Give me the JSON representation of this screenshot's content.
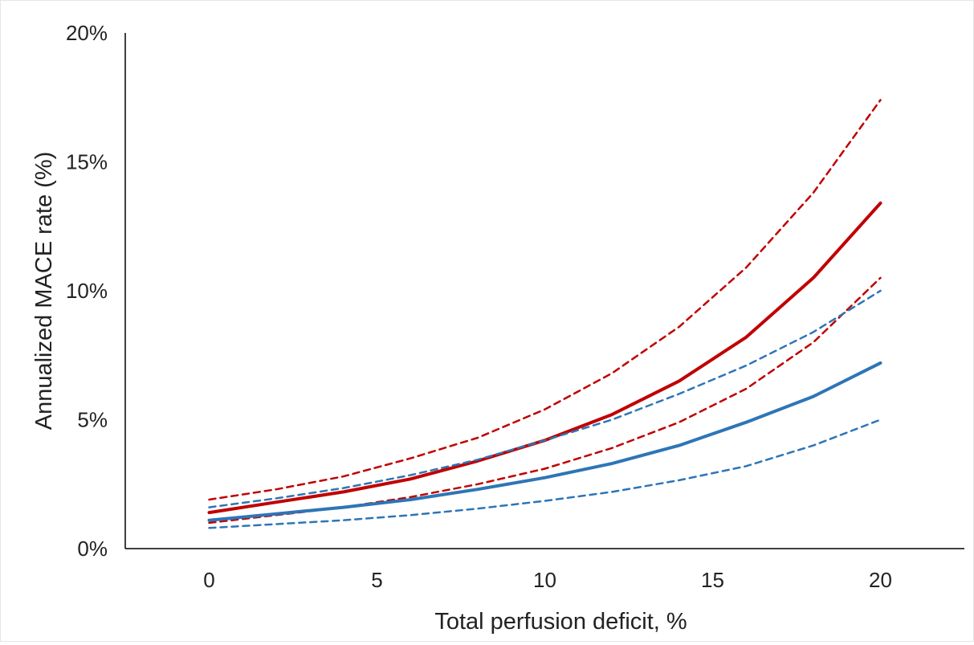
{
  "chart_data": {
    "type": "line",
    "title": "",
    "xlabel": "Total perfusion deficit, %",
    "ylabel": "Annualized MACE rate (%)",
    "xlim": [
      -2.5,
      22.5
    ],
    "ylim": [
      0,
      20
    ],
    "x_ticks": [
      0,
      5,
      10,
      15,
      20
    ],
    "x_tick_labels": [
      "0",
      "5",
      "10",
      "15",
      "20"
    ],
    "y_ticks": [
      0,
      5,
      10,
      15,
      20
    ],
    "y_tick_labels": [
      "0%",
      "5%",
      "10%",
      "15%",
      "20%"
    ],
    "grid": false,
    "legend": "none",
    "series": [
      {
        "color": "#c00000",
        "style": "solid",
        "x": [
          0,
          2,
          4,
          6,
          8,
          10,
          12,
          14,
          16,
          18,
          20
        ],
        "values": [
          1.4,
          1.8,
          2.2,
          2.7,
          3.4,
          4.2,
          5.2,
          6.5,
          8.2,
          10.5,
          13.4
        ]
      },
      {
        "color": "#c00000",
        "style": "dashed",
        "x": [
          0,
          2,
          4,
          6,
          8,
          10,
          12,
          14,
          16,
          18,
          20
        ],
        "values": [
          1.9,
          2.3,
          2.8,
          3.5,
          4.3,
          5.4,
          6.8,
          8.6,
          10.9,
          13.8,
          17.4
        ]
      },
      {
        "color": "#c00000",
        "style": "dashed",
        "x": [
          0,
          2,
          4,
          6,
          8,
          10,
          12,
          14,
          16,
          18,
          20
        ],
        "values": [
          1.0,
          1.3,
          1.6,
          2.0,
          2.5,
          3.1,
          3.9,
          4.9,
          6.2,
          8.0,
          10.5
        ]
      },
      {
        "color": "#2e75b6",
        "style": "solid",
        "x": [
          0,
          2,
          4,
          6,
          8,
          10,
          12,
          14,
          16,
          18,
          20
        ],
        "values": [
          1.1,
          1.35,
          1.6,
          1.9,
          2.3,
          2.75,
          3.3,
          4.0,
          4.9,
          5.9,
          7.2
        ]
      },
      {
        "color": "#2e75b6",
        "style": "dashed",
        "x": [
          0,
          2,
          4,
          6,
          8,
          10,
          12,
          14,
          16,
          18,
          20
        ],
        "values": [
          1.6,
          1.95,
          2.35,
          2.85,
          3.45,
          4.2,
          5.0,
          6.0,
          7.1,
          8.4,
          10.0
        ]
      },
      {
        "color": "#2e75b6",
        "style": "dashed",
        "x": [
          0,
          2,
          4,
          6,
          8,
          10,
          12,
          14,
          16,
          18,
          20
        ],
        "values": [
          0.8,
          0.95,
          1.1,
          1.3,
          1.55,
          1.85,
          2.2,
          2.65,
          3.2,
          4.0,
          5.0
        ]
      }
    ]
  }
}
